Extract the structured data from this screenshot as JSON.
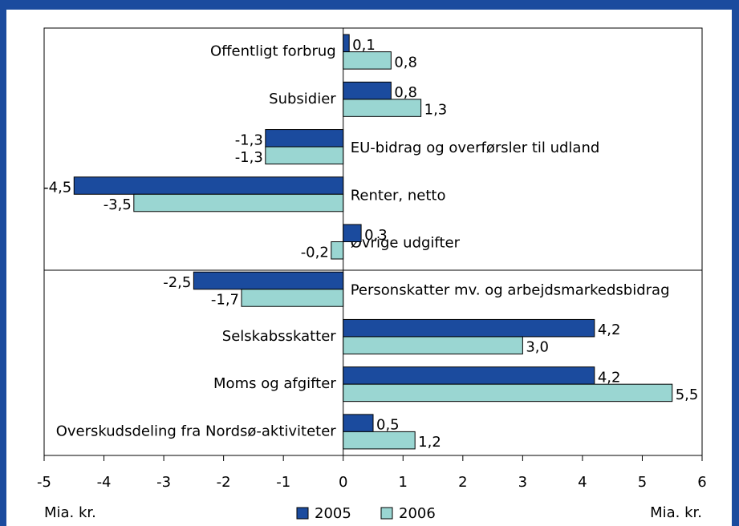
{
  "chart_data": {
    "type": "hbar",
    "categories": [
      "Offentligt forbrug",
      "Subsidier",
      "EU-bidrag og overførsler til udland",
      "Renter, netto",
      "Øvrige udgifter",
      "Personskatter mv. og arbejdsmarkedsbidrag",
      "Selskabsskatter",
      "Moms og afgifter",
      "Overskudsdeling fra Nordsø-aktiviteter"
    ],
    "series": [
      {
        "name": "2005",
        "color": "#1b4b9e",
        "values": [
          0.1,
          0.8,
          -1.3,
          -4.5,
          0.3,
          -2.5,
          4.2,
          4.2,
          0.5
        ],
        "value_labels": [
          "0,1",
          "0,8",
          "-1,3",
          "-4,5",
          "0,3",
          "-2,5",
          "4,2",
          "4,2",
          "0,5"
        ]
      },
      {
        "name": "2006",
        "color": "#9ad6d2",
        "values": [
          0.8,
          1.3,
          -1.3,
          -3.5,
          -0.2,
          -1.7,
          3.0,
          5.5,
          1.2
        ],
        "value_labels": [
          "0,8",
          "1,3",
          "-1,3",
          "-3,5",
          "-0,2",
          "-1,7",
          "3,0",
          "5,5",
          "1,2"
        ]
      }
    ],
    "xlim": [
      -5,
      6
    ],
    "xticks": [
      -5,
      -4,
      -3,
      -2,
      -1,
      0,
      1,
      2,
      3,
      4,
      5,
      6
    ],
    "x_label_left": "Mia. kr.",
    "x_label_right": "Mia. kr."
  }
}
